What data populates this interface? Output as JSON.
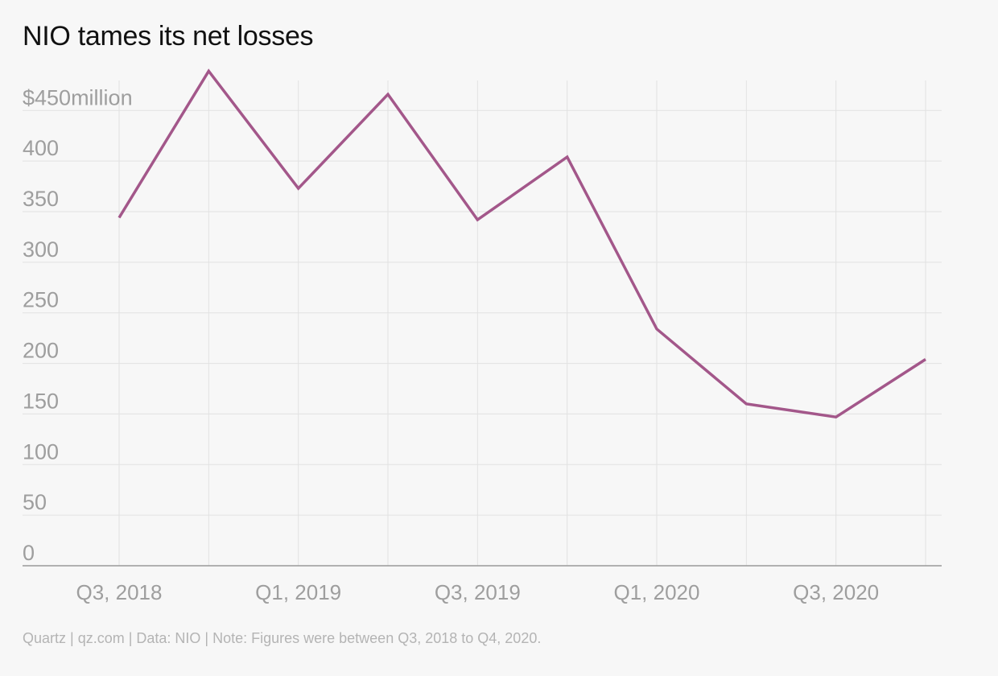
{
  "title": "NIO tames its net losses",
  "source": "Quartz | qz.com | Data: NIO | Note: Figures were between Q3, 2018 to Q4, 2020.",
  "colors": {
    "line": "#a3578a",
    "grid": "#e2e2e2",
    "axis": "#9a9a9a",
    "tick_text": "#9e9e9e"
  },
  "chart_data": {
    "type": "line",
    "title": "NIO tames its net losses",
    "xlabel": "",
    "ylabel": "",
    "categories": [
      "Q3, 2018",
      "Q4, 2018",
      "Q1, 2019",
      "Q2, 2019",
      "Q3, 2019",
      "Q4, 2019",
      "Q1, 2020",
      "Q2, 2020",
      "Q3, 2020",
      "Q4, 2020"
    ],
    "x_tick_labels": [
      "Q3, 2018",
      "",
      "Q1, 2019",
      "",
      "Q3, 2019",
      "",
      "Q1, 2020",
      "",
      "Q3, 2020",
      ""
    ],
    "series": [
      {
        "values": [
          344,
          489,
          373,
          466,
          342,
          404,
          234,
          160,
          147,
          204
        ]
      }
    ],
    "ylim": [
      0,
      490
    ],
    "y_ticks": [
      0,
      50,
      100,
      150,
      200,
      250,
      300,
      350,
      400,
      450
    ],
    "y_tick_labels": [
      "0",
      "50",
      "100",
      "150",
      "200",
      "250",
      "300",
      "350",
      "400",
      "$450million"
    ],
    "grid": true
  }
}
